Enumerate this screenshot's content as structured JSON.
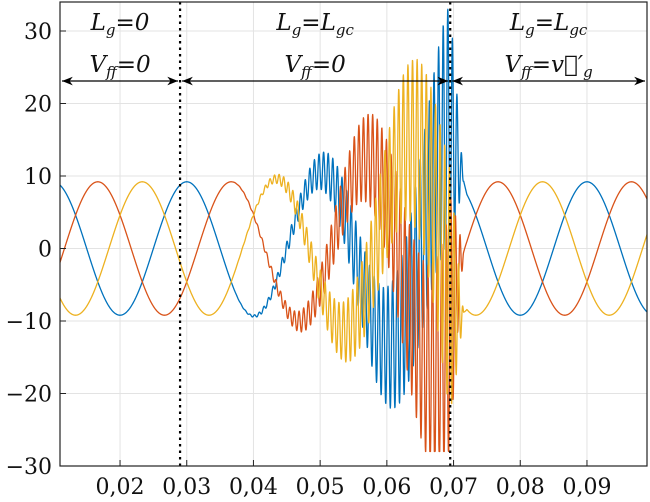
{
  "chart_data": {
    "type": "line",
    "title": "",
    "xlabel": "",
    "ylabel": "",
    "xlim": [
      0.011,
      0.099
    ],
    "ylim": [
      -30,
      34
    ],
    "x_ticks": [
      0.02,
      0.03,
      0.04,
      0.05,
      0.06,
      0.07,
      0.08,
      0.09
    ],
    "x_tick_labels": [
      "0,02",
      "0,03",
      "0,04",
      "0,05",
      "0,06",
      "0,07",
      "0,08",
      "0,09"
    ],
    "y_ticks": [
      -30,
      -20,
      -10,
      0,
      10,
      20,
      30
    ],
    "y_tick_labels": [
      "−30",
      "−20",
      "−10",
      "0",
      "10",
      "20",
      "30"
    ],
    "grid": true,
    "fundamental_frequency_hz": 50,
    "steady_amplitude": 9.2,
    "series": [
      {
        "color": "#0072BD",
        "phase_deg": -90
      },
      {
        "color": "#D95319",
        "phase_deg": 150
      },
      {
        "color": "#EDB120",
        "phase_deg": 30
      }
    ],
    "events": [
      {
        "x": 0.029,
        "style": "dotted"
      },
      {
        "x": 0.0695,
        "style": "dotted"
      }
    ],
    "arrow_level": 23.1,
    "regions": [
      {
        "x_from": 0.011,
        "x_to": 0.029,
        "line1": {
          "main": "L",
          "sub": "g",
          "rest": "=0"
        },
        "line2": {
          "main": "V",
          "sub": "ff",
          "rest": "=0"
        }
      },
      {
        "x_from": 0.029,
        "x_to": 0.0695,
        "line1": {
          "main": "L",
          "sub": "g",
          "rest": "=L",
          "sub2": "gc"
        },
        "line2": {
          "main": "V",
          "sub": "ff",
          "rest": "=0"
        }
      },
      {
        "x_from": 0.0695,
        "x_to": 0.099,
        "line1": {
          "main": "L",
          "sub": "g",
          "rest": "=L",
          "sub2": "gc"
        },
        "line2": {
          "main": "V",
          "sub": "ff",
          "rest": "=v⃗′",
          "sub2": "g"
        }
      }
    ]
  }
}
